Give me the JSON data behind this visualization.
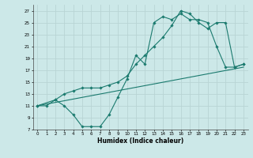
{
  "xlabel": "Humidex (Indice chaleur)",
  "bg_color": "#cce8e8",
  "grid_color": "#b8d4d4",
  "line_color": "#1a7a6e",
  "xlim": [
    -0.5,
    23.5
  ],
  "ylim": [
    7,
    28
  ],
  "yticks": [
    7,
    9,
    11,
    13,
    15,
    17,
    19,
    21,
    23,
    25,
    27
  ],
  "xticks": [
    0,
    1,
    2,
    3,
    4,
    5,
    6,
    7,
    8,
    9,
    10,
    11,
    12,
    13,
    14,
    15,
    16,
    17,
    18,
    19,
    20,
    21,
    22,
    23
  ],
  "line1_x": [
    0,
    1,
    2,
    3,
    4,
    5,
    6,
    7,
    8,
    9,
    10,
    11,
    12,
    13,
    14,
    15,
    16,
    17,
    18,
    19,
    20,
    21,
    22,
    23
  ],
  "line1_y": [
    11,
    11,
    12,
    11,
    9.5,
    7.5,
    7.5,
    7.5,
    9.5,
    12.5,
    15.5,
    19.5,
    18,
    25,
    26,
    25.5,
    26.5,
    25.5,
    25.5,
    25,
    21,
    17.5,
    17.5,
    18
  ],
  "line2_x": [
    0,
    2,
    3,
    4,
    5,
    6,
    7,
    8,
    9,
    10,
    11,
    12,
    13,
    14,
    15,
    16,
    17,
    18,
    19,
    20,
    21,
    22,
    23
  ],
  "line2_y": [
    11,
    12,
    13,
    13.5,
    14,
    14,
    14,
    14.5,
    15,
    16,
    18,
    19.5,
    21,
    22.5,
    24.5,
    27,
    26.5,
    25,
    24,
    25,
    25,
    17.5,
    18
  ],
  "line3_x": [
    0,
    23
  ],
  "line3_y": [
    11,
    17.5
  ]
}
